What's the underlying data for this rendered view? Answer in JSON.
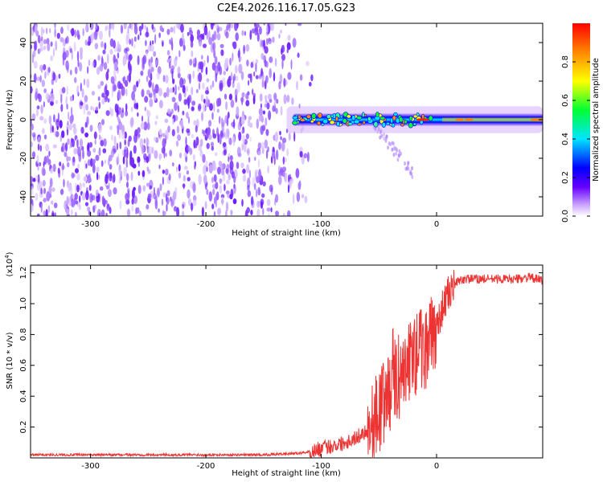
{
  "figure": {
    "title": "C2E4.2026.116.17.05.G23"
  },
  "chart_data": [
    {
      "type": "heatmap",
      "title": "C2E4.2026.116.17.05.G23",
      "xlabel": "Height of straight line (km)",
      "ylabel": "Frequency (Hz)",
      "xlim": [
        -352,
        92
      ],
      "ylim": [
        -50,
        50
      ],
      "xticks": [
        -300,
        -200,
        -100,
        0
      ],
      "yticks": [
        -40,
        -20,
        0,
        20,
        40
      ],
      "colorbar": {
        "label": "Normalized spectral amplitude",
        "range": [
          0,
          1
        ],
        "ticks": [
          0.0,
          0.2,
          0.4,
          0.6,
          0.8
        ],
        "colors": [
          "#ffffff",
          "#c9a0ff",
          "#6600ff",
          "#0000ff",
          "#00e5ff",
          "#00ff33",
          "#ffff00",
          "#ff8800",
          "#ff0000"
        ]
      },
      "features": [
        {
          "description": "noise region",
          "x_range": [
            -352,
            -110
          ],
          "freq_range": [
            -50,
            50
          ],
          "amplitude": 0.1
        },
        {
          "description": "signal band",
          "x_range": [
            -130,
            92
          ],
          "freq_center": 0,
          "amplitude_range": [
            0.2,
            0.95
          ]
        },
        {
          "description": "descending trail",
          "x_range": [
            -55,
            -20
          ],
          "freq_range": [
            -30,
            0
          ],
          "amplitude": 0.12
        }
      ]
    },
    {
      "type": "line",
      "title": "",
      "xlabel": "Height of straight line (km)",
      "ylabel": "SNR (10 * v/v)",
      "scale_label": "(x10",
      "scale_exponent": "4",
      "xlim": [
        -352,
        92
      ],
      "ylim": [
        0,
        1.25
      ],
      "xticks": [
        -300,
        -200,
        -100,
        0
      ],
      "yticks": [
        0.2,
        0.4,
        0.6,
        0.8,
        1.0,
        1.2
      ],
      "series": [
        {
          "name": "SNR",
          "color": "#ee3333",
          "x": [
            -352,
            -300,
            -250,
            -200,
            -150,
            -120,
            -110,
            -100,
            -90,
            -80,
            -70,
            -60,
            -55,
            -50,
            -45,
            -40,
            -35,
            -30,
            -25,
            -20,
            -15,
            -10,
            -5,
            0,
            5,
            10,
            15,
            20,
            25,
            30,
            40,
            50,
            60,
            70,
            80,
            92
          ],
          "values": [
            0.02,
            0.02,
            0.02,
            0.02,
            0.02,
            0.03,
            0.04,
            0.06,
            0.08,
            0.1,
            0.13,
            0.18,
            0.22,
            0.3,
            0.38,
            0.45,
            0.5,
            0.55,
            0.6,
            0.66,
            0.7,
            0.72,
            0.76,
            0.85,
            0.97,
            1.06,
            1.12,
            1.15,
            1.16,
            1.16,
            1.16,
            1.16,
            1.16,
            1.16,
            1.17,
            1.15
          ]
        }
      ]
    }
  ]
}
